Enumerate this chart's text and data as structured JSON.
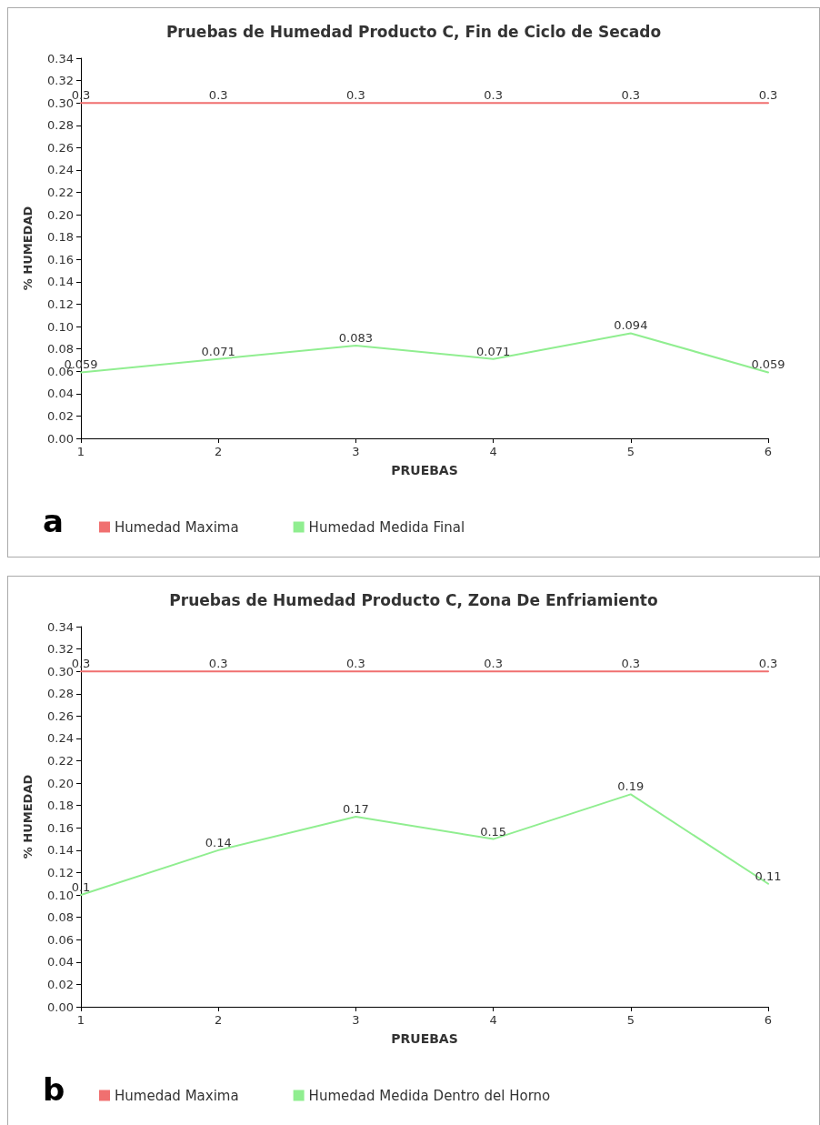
{
  "chart_data": [
    {
      "type": "line",
      "title": "Pruebas de Humedad Producto C, Fin de Ciclo de Secado",
      "xlabel": "PRUEBAS",
      "ylabel": "% HUMEDAD",
      "x": [
        1,
        2,
        3,
        4,
        5,
        6
      ],
      "series": [
        {
          "name": "Humedad Maxima",
          "color": "#f07070",
          "values": [
            0.3,
            0.3,
            0.3,
            0.3,
            0.3,
            0.3
          ]
        },
        {
          "name": "Humedad Medida Final",
          "color": "#90ee90",
          "values": [
            0.059,
            0.071,
            0.083,
            0.071,
            0.094,
            0.059
          ]
        }
      ],
      "xlim": [
        1,
        6
      ],
      "xticks": [
        1,
        2,
        3,
        4,
        5,
        6
      ],
      "ylim": [
        0,
        0.34
      ],
      "yticks": [
        {
          "value": 0,
          "label": "0.00"
        },
        {
          "value": 0.02,
          "label": "0.02"
        },
        {
          "value": 0.04,
          "label": "0.04"
        },
        {
          "value": 0.06,
          "label": "0.06"
        },
        {
          "value": 0.08,
          "label": "0.08"
        },
        {
          "value": 0.1,
          "label": "0.10"
        },
        {
          "value": 0.12,
          "label": "0.12"
        },
        {
          "value": 0.14,
          "label": "0.14"
        },
        {
          "value": 0.16,
          "label": "0.16"
        },
        {
          "value": 0.18,
          "label": "0.18"
        },
        {
          "value": 0.2,
          "label": "0.20"
        },
        {
          "value": 0.22,
          "label": "0.22"
        },
        {
          "value": 0.24,
          "label": "0.24"
        },
        {
          "value": 0.26,
          "label": "0.26"
        },
        {
          "value": 0.28,
          "label": "0.28"
        },
        {
          "value": 0.3,
          "label": "0.30"
        },
        {
          "value": 0.32,
          "label": "0.32"
        },
        {
          "value": 0.34,
          "label": "0.34"
        }
      ],
      "data_labels": true,
      "grid": false,
      "legend": "bottom left",
      "marker": "none",
      "line_style": "solid",
      "annotations": [
        "a"
      ]
    },
    {
      "type": "line",
      "title": "Pruebas de Humedad Producto C, Zona De Enfriamiento",
      "xlabel": "PRUEBAS",
      "ylabel": "% HUMEDAD",
      "x": [
        1,
        2,
        3,
        4,
        5,
        6
      ],
      "series": [
        {
          "name": "Humedad Maxima",
          "color": "#f07070",
          "values": [
            0.3,
            0.3,
            0.3,
            0.3,
            0.3,
            0.3
          ]
        },
        {
          "name": "Humedad Medida Dentro del Horno",
          "color": "#90ee90",
          "values": [
            0.1,
            0.14,
            0.17,
            0.15,
            0.19,
            0.11
          ]
        }
      ],
      "xlim": [
        1,
        6
      ],
      "xticks": [
        1,
        2,
        3,
        4,
        5,
        6
      ],
      "ylim": [
        0,
        0.34
      ],
      "yticks": [
        {
          "value": 0,
          "label": "0.00"
        },
        {
          "value": 0.02,
          "label": "0.02"
        },
        {
          "value": 0.04,
          "label": "0.04"
        },
        {
          "value": 0.06,
          "label": "0.06"
        },
        {
          "value": 0.08,
          "label": "0.08"
        },
        {
          "value": 0.1,
          "label": "0.10"
        },
        {
          "value": 0.12,
          "label": "0.12"
        },
        {
          "value": 0.14,
          "label": "0.14"
        },
        {
          "value": 0.16,
          "label": "0.16"
        },
        {
          "value": 0.18,
          "label": "0.18"
        },
        {
          "value": 0.2,
          "label": "0.20"
        },
        {
          "value": 0.22,
          "label": "0.22"
        },
        {
          "value": 0.24,
          "label": "0.24"
        },
        {
          "value": 0.26,
          "label": "0.26"
        },
        {
          "value": 0.28,
          "label": "0.28"
        },
        {
          "value": 0.3,
          "label": "0.30"
        },
        {
          "value": 0.32,
          "label": "0.32"
        },
        {
          "value": 0.34,
          "label": "0.34"
        }
      ],
      "data_labels": true,
      "grid": false,
      "legend": "bottom left",
      "marker": "none",
      "line_style": "solid",
      "annotations": [
        "b"
      ]
    }
  ]
}
